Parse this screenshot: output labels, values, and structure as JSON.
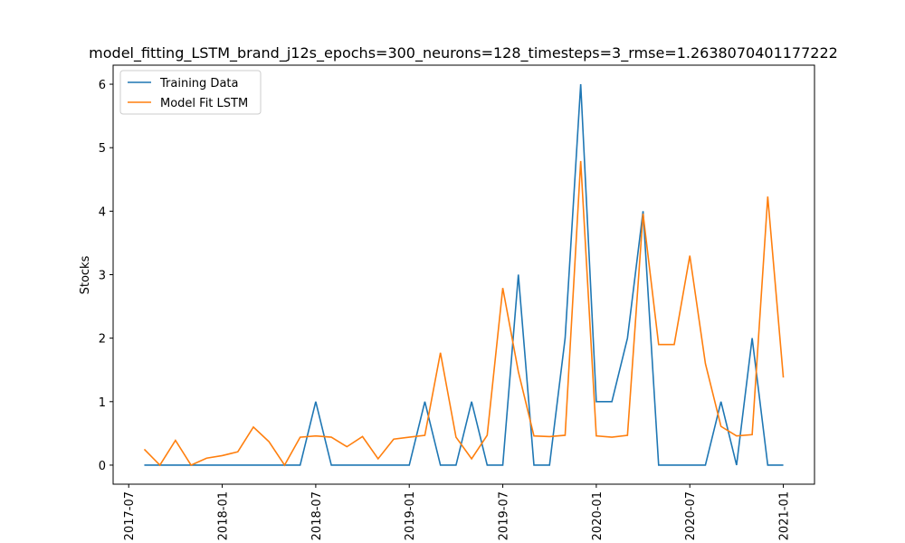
{
  "chart_data": {
    "type": "line",
    "title": "model_fitting_LSTM_brand_j12s_epochs=300_neurons=128_timesteps=3_rmse=1.2638070401177222",
    "y_label": "Stocks",
    "x": [
      "2017-08",
      "2017-09",
      "2017-10",
      "2017-11",
      "2017-12",
      "2018-01",
      "2018-02",
      "2018-03",
      "2018-04",
      "2018-05",
      "2018-06",
      "2018-07",
      "2018-08",
      "2018-09",
      "2018-10",
      "2018-11",
      "2018-12",
      "2019-01",
      "2019-02",
      "2019-03",
      "2019-04",
      "2019-05",
      "2019-06",
      "2019-07",
      "2019-08",
      "2019-09",
      "2019-10",
      "2019-11",
      "2019-12",
      "2020-01",
      "2020-02",
      "2020-03",
      "2020-04",
      "2020-05",
      "2020-06",
      "2020-07",
      "2020-08",
      "2020-09",
      "2020-10",
      "2020-11",
      "2020-12",
      "2021-01"
    ],
    "series": [
      {
        "name": "Training Data",
        "color": "#1f77b4",
        "values": [
          0,
          0,
          0,
          0,
          0,
          0,
          0,
          0,
          0,
          0,
          0,
          1,
          0,
          0,
          0,
          0,
          0,
          0,
          1,
          0,
          0,
          1,
          0,
          0,
          3,
          0,
          0,
          2,
          6,
          1,
          1,
          2,
          4,
          0,
          0,
          0,
          0,
          1,
          0,
          2,
          0,
          0
        ]
      },
      {
        "name": "Model Fit LSTM",
        "color": "#ff7f0e",
        "values": [
          0.25,
          0,
          0.39,
          0,
          0.11,
          0.15,
          0.21,
          0.6,
          0.37,
          0,
          0.44,
          0.46,
          0.44,
          0.29,
          0.45,
          0.1,
          0.41,
          0.44,
          0.47,
          1.77,
          0.44,
          0.1,
          0.47,
          2.79,
          1.47,
          0.46,
          0.45,
          0.47,
          4.79,
          0.46,
          0.44,
          0.47,
          3.96,
          1.9,
          1.9,
          3.3,
          1.6,
          0.61,
          0.46,
          0.48,
          4.23,
          1.38
        ]
      }
    ],
    "xlim": [
      "2017-06",
      "2021-03"
    ],
    "xticks": [
      "2017-07",
      "2018-01",
      "2018-07",
      "2019-01",
      "2019-07",
      "2020-01",
      "2020-07",
      "2021-01"
    ],
    "ylim": [
      -0.3,
      6.3
    ],
    "yticks": [
      0,
      1,
      2,
      3,
      4,
      5,
      6
    ],
    "legend": "upper left"
  }
}
